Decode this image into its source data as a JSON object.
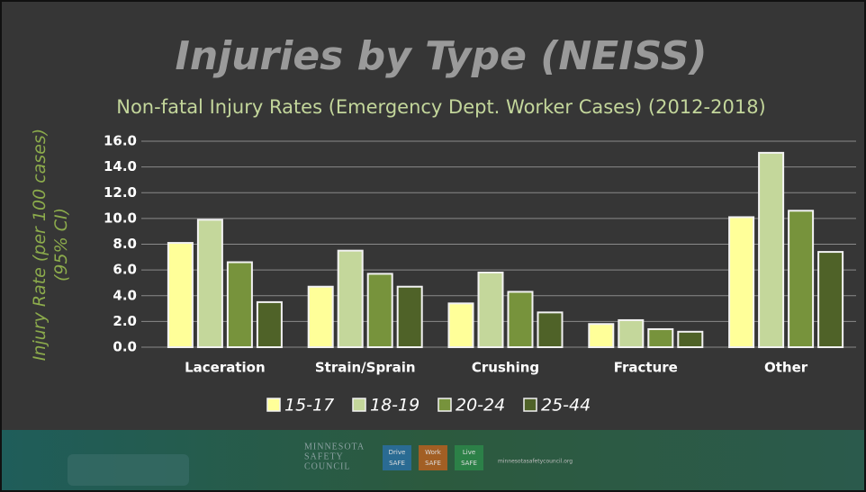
{
  "chart_data": {
    "type": "bar",
    "title": "Injuries by Type (NEISS)",
    "subtitle": "Non-fatal Injury Rates (Emergency Dept. Worker Cases) (2012-2018)",
    "y_label": "Injury Rate (per 100 cases)\n(95% CI)",
    "categories": [
      "Laceration",
      "Strain/Sprain",
      "Crushing",
      "Fracture",
      "Other"
    ],
    "series": [
      {
        "name": "15-17",
        "color": "#ffff99",
        "values": [
          8.1,
          4.7,
          3.4,
          1.8,
          10.1
        ]
      },
      {
        "name": "18-19",
        "color": "#c4d79b",
        "values": [
          9.9,
          7.5,
          5.8,
          2.1,
          15.1
        ]
      },
      {
        "name": "20-24",
        "color": "#77933c",
        "values": [
          6.6,
          5.7,
          4.3,
          1.4,
          10.6
        ]
      },
      {
        "name": "25-44",
        "color": "#4f6228",
        "values": [
          3.5,
          4.7,
          2.7,
          1.2,
          7.4
        ]
      }
    ],
    "ylim": [
      0,
      16
    ],
    "yticks": [
      {
        "value": 0,
        "label": "0.0"
      },
      {
        "value": 2,
        "label": "2.0"
      },
      {
        "value": 4,
        "label": "4.0"
      },
      {
        "value": 6,
        "label": "6.0"
      },
      {
        "value": 8,
        "label": "8.0"
      },
      {
        "value": 10,
        "label": "10.0"
      },
      {
        "value": 12,
        "label": "12.0"
      },
      {
        "value": 14,
        "label": "14.0"
      },
      {
        "value": 16,
        "label": "16.0"
      }
    ],
    "grid": true,
    "legend": "bottom"
  },
  "footer": {
    "org": [
      "MINNESOTA",
      "SAFETY",
      "COUNCIL"
    ],
    "badges": [
      [
        "Drive",
        "SAFE"
      ],
      [
        "Work",
        "SAFE"
      ],
      [
        "Live",
        "SAFE"
      ]
    ],
    "url": "minnesotasafetycouncil.org"
  }
}
